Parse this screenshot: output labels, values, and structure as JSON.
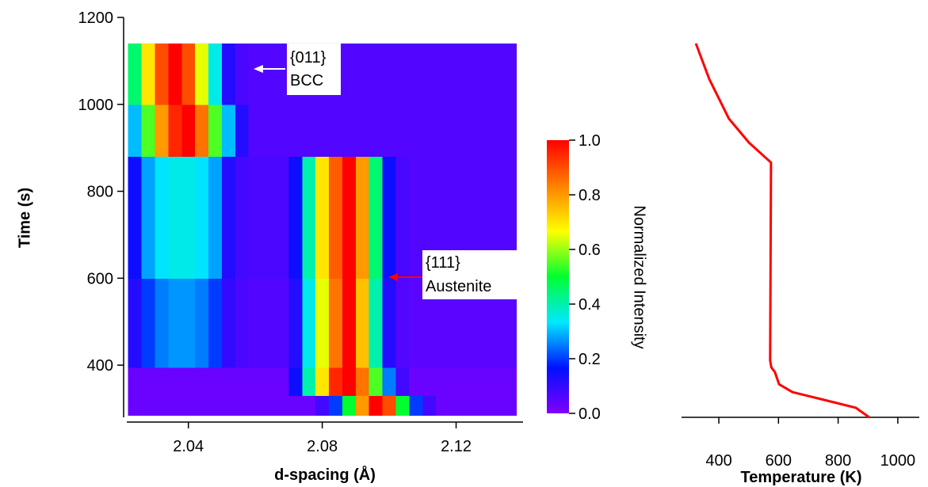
{
  "chart_data": [
    {
      "type": "heatmap",
      "ylabel": "Time (s)",
      "xlabel": "d-spacing (Å)",
      "xlim": [
        2.0216,
        2.14
      ],
      "xticks": [
        2.04,
        2.08,
        2.12
      ],
      "ylim": [
        280,
        1200
      ],
      "yticks": [
        400,
        600,
        800,
        1000,
        1200
      ],
      "x_edges": [
        2.022,
        2.026,
        2.03,
        2.034,
        2.038,
        2.042,
        2.046,
        2.05,
        2.054,
        2.058,
        2.062,
        2.066,
        2.07,
        2.074,
        2.078,
        2.082,
        2.086,
        2.09,
        2.094,
        2.098,
        2.102,
        2.106,
        2.11,
        2.114,
        2.118,
        2.122,
        2.126,
        2.13,
        2.134,
        2.138
      ],
      "y_edges": [
        285,
        330,
        395,
        600,
        880,
        1000,
        1140
      ],
      "z": [
        [
          0.03,
          0.03,
          0.03,
          0.03,
          0.03,
          0.03,
          0.03,
          0.03,
          0.03,
          0.03,
          0.03,
          0.03,
          0.03,
          0.03,
          0.08,
          0.2,
          0.5,
          0.8,
          1.0,
          0.9,
          0.5,
          0.2,
          0.08,
          0.03,
          0.03,
          0.03,
          0.03,
          0.03,
          0.03
        ],
        [
          0.03,
          0.03,
          0.03,
          0.03,
          0.03,
          0.03,
          0.03,
          0.03,
          0.03,
          0.03,
          0.03,
          0.03,
          0.15,
          0.4,
          0.7,
          0.95,
          1.0,
          0.85,
          0.55,
          0.25,
          0.08,
          0.03,
          0.03,
          0.03,
          0.03,
          0.03,
          0.03,
          0.03,
          0.03
        ],
        [
          0.12,
          0.2,
          0.25,
          0.27,
          0.27,
          0.25,
          0.2,
          0.1,
          0.07,
          0.06,
          0.06,
          0.06,
          0.12,
          0.35,
          0.65,
          0.85,
          1.0,
          0.75,
          0.4,
          0.12,
          0.06,
          0.05,
          0.05,
          0.05,
          0.05,
          0.05,
          0.05,
          0.05,
          0.05
        ],
        [
          0.15,
          0.28,
          0.33,
          0.35,
          0.35,
          0.33,
          0.28,
          0.12,
          0.08,
          0.07,
          0.07,
          0.07,
          0.15,
          0.4,
          0.7,
          0.88,
          1.0,
          0.8,
          0.45,
          0.15,
          0.07,
          0.06,
          0.06,
          0.06,
          0.06,
          0.06,
          0.06,
          0.06,
          0.06
        ],
        [
          0.3,
          0.55,
          0.8,
          0.95,
          1.0,
          0.85,
          0.55,
          0.3,
          0.12,
          0.06,
          0.06,
          0.06,
          0.06,
          0.06,
          0.06,
          0.06,
          0.06,
          0.06,
          0.06,
          0.06,
          0.06,
          0.06,
          0.06,
          0.06,
          0.06,
          0.06,
          0.06,
          0.06,
          0.06
        ],
        [
          0.45,
          0.7,
          0.9,
          1.0,
          0.9,
          0.65,
          0.35,
          0.12,
          0.07,
          0.06,
          0.06,
          0.06,
          0.06,
          0.06,
          0.06,
          0.06,
          0.06,
          0.06,
          0.06,
          0.06,
          0.06,
          0.06,
          0.06,
          0.06,
          0.06,
          0.06,
          0.06,
          0.06,
          0.06
        ]
      ],
      "colormap": [
        "#8000ff",
        "#0010ff",
        "#00e8ff",
        "#00ff30",
        "#ffff00",
        "#ff8000",
        "#ff0000"
      ],
      "zlim": [
        0,
        1
      ],
      "zticks": [
        {
          "value": 0,
          "label": "0.0"
        },
        {
          "value": 0.2,
          "label": "0.2"
        },
        {
          "value": 0.4,
          "label": "0.4"
        },
        {
          "value": 0.6,
          "label": "0.6"
        },
        {
          "value": 0.8,
          "label": "0.8"
        },
        {
          "value": 1,
          "label": "1.0"
        }
      ],
      "zlabel": "Normalized Intensity",
      "annotations": [
        {
          "lines": [
            "{011}",
            "BCC"
          ],
          "color": "#ffffff"
        },
        {
          "lines": [
            "{111}",
            "Austenite"
          ],
          "color": "#ff0000"
        }
      ]
    },
    {
      "type": "line",
      "xlabel": "Temperature (K)",
      "xlim": [
        275,
        1072
      ],
      "xticks": [
        400,
        600,
        800,
        1000
      ],
      "ylim": [
        280,
        1200
      ],
      "x": [
        323,
        368,
        434,
        501,
        575,
        572,
        576,
        588,
        602,
        647,
        753,
        859,
        904
      ],
      "values": [
        1140,
        1058,
        967,
        912,
        866,
        411,
        395,
        384,
        356,
        338,
        320,
        302,
        280
      ],
      "color": "#ff0000"
    }
  ]
}
